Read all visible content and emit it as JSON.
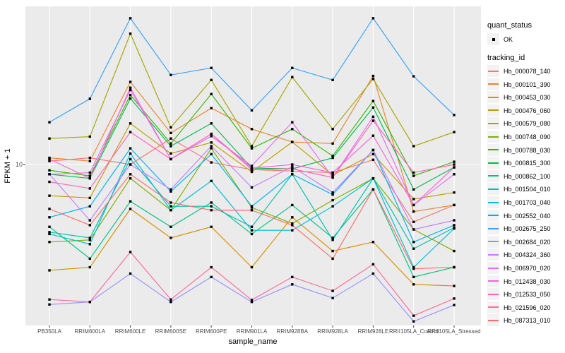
{
  "axes": {
    "x_label": "sample_name",
    "y_label": "FPKM + 1",
    "y_tick": "10",
    "y_scale": "log10"
  },
  "legend": {
    "quant_status_title": "quant_status",
    "quant_status_items": [
      "OK"
    ],
    "tracking_title": "tracking_id"
  },
  "chart_data": {
    "type": "line",
    "title": "",
    "xlabel": "sample_name",
    "ylabel": "FPKM + 1",
    "y_scale": "log10",
    "ylim": [
      1,
      100
    ],
    "y_ticks": [
      10
    ],
    "grid": "ggplot-major",
    "legend_position": "right",
    "point_marker": "black-square (quant_status = OK)",
    "categories": [
      "PB350LA",
      "RRIM600LA",
      "RRIM600LE",
      "RRIM600SE",
      "RRIM600PE",
      "RRIM901LA",
      "RRIM928BA",
      "RRIM928LA",
      "RRIM928LE",
      "RRII105LA_Control",
      "RRII105LA_Stressed"
    ],
    "series": [
      {
        "name": "Hb_000078_140",
        "color": "#F8766D",
        "values": [
          10.5,
          11.0,
          10.0,
          14.5,
          10.3,
          9.3,
          9.1,
          8.9,
          10.7,
          4.4,
          5.6
        ]
      },
      {
        "name": "Hb_000101_390",
        "color": "#EA8331",
        "values": [
          11.0,
          10.5,
          32.6,
          15.7,
          22.4,
          16.6,
          13.8,
          13.5,
          35.5,
          5.1,
          5.6
        ]
      },
      {
        "name": "Hb_000453_030",
        "color": "#D89000",
        "values": [
          2.2,
          2.3,
          5.3,
          3.5,
          4.1,
          2.3,
          4.7,
          2.9,
          3.3,
          1.8,
          1.76
        ]
      },
      {
        "name": "Hb_000476_060",
        "color": "#C09B00",
        "values": [
          6.4,
          6.2,
          18.0,
          11.7,
          13.7,
          9.0,
          13.8,
          8.6,
          11.6,
          6.1,
          6.7
        ]
      },
      {
        "name": "Hb_000579_080",
        "color": "#A3A500",
        "values": [
          14.5,
          14.9,
          65.0,
          17.0,
          33.5,
          13.0,
          34.9,
          16.6,
          34.0,
          13.0,
          15.9
        ]
      },
      {
        "name": "Hb_000748_090",
        "color": "#7CAE00",
        "values": [
          3.3,
          3.4,
          8.2,
          5.2,
          12.6,
          5.4,
          4.3,
          6.0,
          8.2,
          3.95,
          2.9
        ]
      },
      {
        "name": "Hb_000788_030",
        "color": "#39B600",
        "values": [
          9.2,
          8.5,
          27.0,
          13.5,
          27.4,
          12.6,
          16.6,
          11.3,
          24.8,
          8.5,
          10.4
        ]
      },
      {
        "name": "Hb_000815_300",
        "color": "#00BB4E",
        "values": [
          8.7,
          8.2,
          25.7,
          13.0,
          18.0,
          9.5,
          9.4,
          11.0,
          22.6,
          7.0,
          9.6
        ]
      },
      {
        "name": "Hb_000862_100",
        "color": "#00C087",
        "values": [
          4.1,
          2.6,
          5.9,
          4.1,
          5.8,
          3.7,
          5.6,
          3.5,
          7.0,
          2.0,
          2.3
        ]
      },
      {
        "name": "Hb_001504_010",
        "color": "#00C0AF",
        "values": [
          3.8,
          3.5,
          10.8,
          5.5,
          5.5,
          4.1,
          8.7,
          3.4,
          8.2,
          3.0,
          4.05
        ]
      },
      {
        "name": "Hb_001703_040",
        "color": "#00BCD8",
        "values": [
          3.7,
          3.2,
          11.7,
          5.2,
          7.9,
          3.9,
          3.9,
          5.5,
          8.2,
          2.3,
          4.0
        ]
      },
      {
        "name": "Hb_002552_040",
        "color": "#00B0F6",
        "values": [
          4.7,
          5.5,
          12.6,
          6.8,
          11.6,
          5.5,
          8.7,
          6.5,
          12.3,
          3.3,
          4.2
        ]
      },
      {
        "name": "Hb_002675_250",
        "color": "#35A2FF",
        "values": [
          18.3,
          25.6,
          81.0,
          36.0,
          39.8,
          21.7,
          39.8,
          33.5,
          81.0,
          35.3,
          20.3
        ]
      },
      {
        "name": "Hb_002684_020",
        "color": "#9590FF",
        "values": [
          1.35,
          1.4,
          2.1,
          1.4,
          2.0,
          1.4,
          1.8,
          1.48,
          2.1,
          1.06,
          1.34
        ]
      },
      {
        "name": "Hb_004324_360",
        "color": "#C77CFF",
        "values": [
          8.7,
          4.5,
          10.0,
          7.0,
          13.0,
          7.2,
          9.7,
          6.7,
          12.3,
          3.95,
          4.5
        ]
      },
      {
        "name": "Hb_006970_020",
        "color": "#E76BF3",
        "values": [
          8.7,
          8.9,
          29.0,
          10.8,
          15.0,
          9.8,
          18.3,
          8.3,
          19.8,
          5.6,
          8.7
        ]
      },
      {
        "name": "Hb_012438_030",
        "color": "#FA62DB",
        "values": [
          10.8,
          8.2,
          30.0,
          10.8,
          15.5,
          9.5,
          10.0,
          8.9,
          15.1,
          5.6,
          9.6
        ]
      },
      {
        "name": "Hb_012533_050",
        "color": "#FF62BC",
        "values": [
          7.8,
          7.1,
          15.9,
          10.8,
          15.5,
          9.3,
          9.4,
          8.3,
          18.7,
          8.9,
          10.0
        ]
      },
      {
        "name": "Hb_021596_020",
        "color": "#FF6A98",
        "values": [
          1.45,
          1.4,
          2.86,
          1.45,
          2.3,
          1.44,
          2.0,
          1.64,
          2.4,
          1.15,
          1.47
        ]
      },
      {
        "name": "Hb_087313_010",
        "color": "#FF6C67",
        "values": [
          5.3,
          4.2,
          8.7,
          5.8,
          5.2,
          5.2,
          4.2,
          2.6,
          7.0,
          2.25,
          2.3
        ]
      }
    ]
  },
  "colors": {
    "panel_bg": "#EBEBEB",
    "grid": "#FFFFFF",
    "tick": "#333333",
    "marker": "#000000",
    "tick_text": "#4d4d4d",
    "legend_key_bg": "#F2F2F2"
  }
}
